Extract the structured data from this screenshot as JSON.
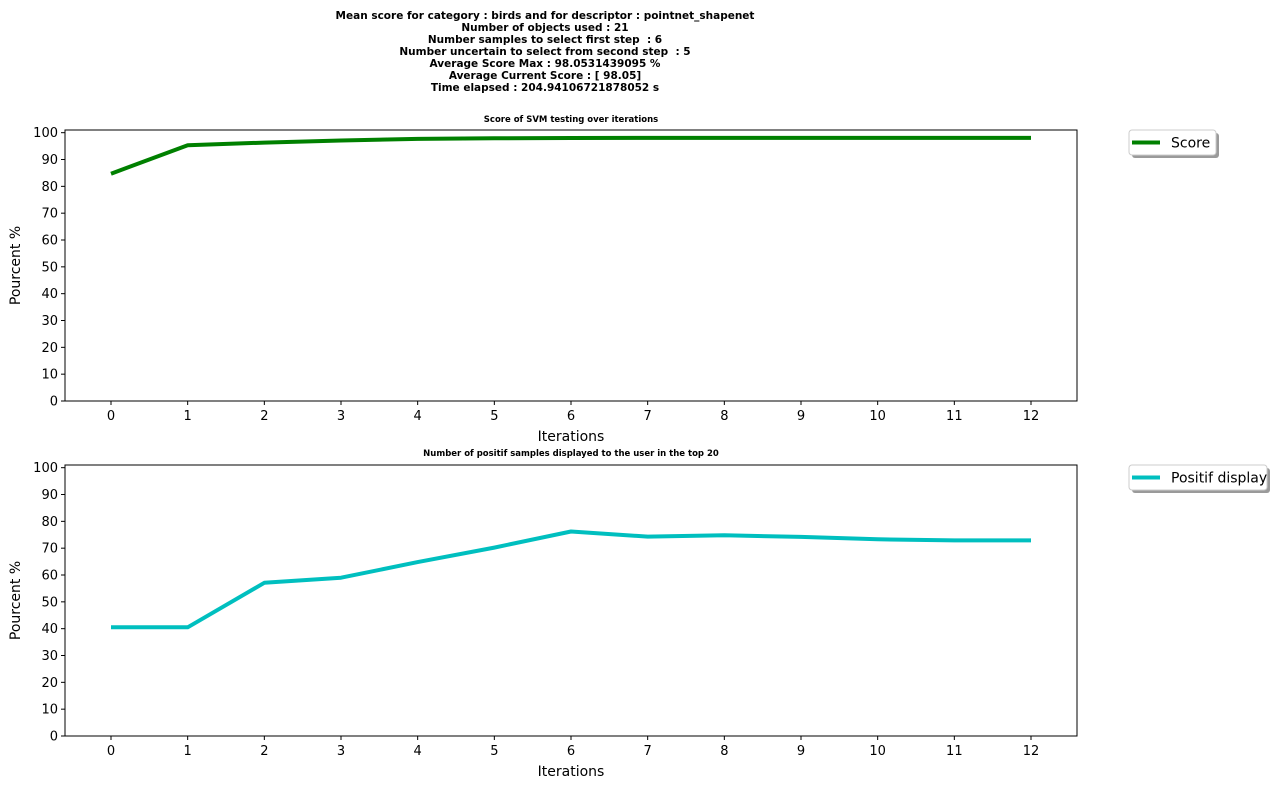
{
  "suptitle_lines": [
    "Mean score for category : birds and for descriptor : pointnet_shapenet",
    "Number of objects used : 21",
    "Number samples to select first step  : 6",
    "Number uncertain to select from second step  : 5",
    "Average Score Max : 98.0531439095 %",
    "Average Current Score : [ 98.05]",
    "Time elapsed : 204.94106721878052 s"
  ],
  "chart_data": [
    {
      "type": "line",
      "title": "Score of SVM testing over iterations",
      "xlabel": "Iterations",
      "ylabel": "Pourcent %",
      "x": [
        0,
        1,
        2,
        3,
        4,
        5,
        6,
        7,
        8,
        9,
        10,
        11,
        12
      ],
      "xlim": [
        -0.6,
        12.6
      ],
      "ylim": [
        0,
        101
      ],
      "yticks": [
        0,
        10,
        20,
        30,
        40,
        50,
        60,
        70,
        80,
        90,
        100
      ],
      "grid": false,
      "legend_position": "outside-top-right",
      "series": [
        {
          "name": "Score",
          "color": "#008000",
          "values": [
            84.7,
            95.3,
            96.3,
            97.1,
            97.7,
            97.9,
            98.0,
            98.05,
            98.05,
            98.05,
            98.05,
            98.05,
            98.05
          ]
        }
      ]
    },
    {
      "type": "line",
      "title": "Number of positif samples displayed to the user in the top 20",
      "xlabel": "Iterations",
      "ylabel": "Pourcent %",
      "x": [
        0,
        1,
        2,
        3,
        4,
        5,
        6,
        7,
        8,
        9,
        10,
        11,
        12
      ],
      "xlim": [
        -0.6,
        12.6
      ],
      "ylim": [
        0,
        101
      ],
      "yticks": [
        0,
        10,
        20,
        30,
        40,
        50,
        60,
        70,
        80,
        90,
        100
      ],
      "grid": false,
      "legend_position": "outside-top-right",
      "series": [
        {
          "name": "Positif display",
          "color": "#00BFBF",
          "values": [
            40.5,
            40.5,
            57.1,
            59.0,
            64.8,
            70.2,
            76.2,
            74.3,
            74.8,
            74.2,
            73.3,
            72.9,
            72.9
          ]
        }
      ]
    }
  ]
}
